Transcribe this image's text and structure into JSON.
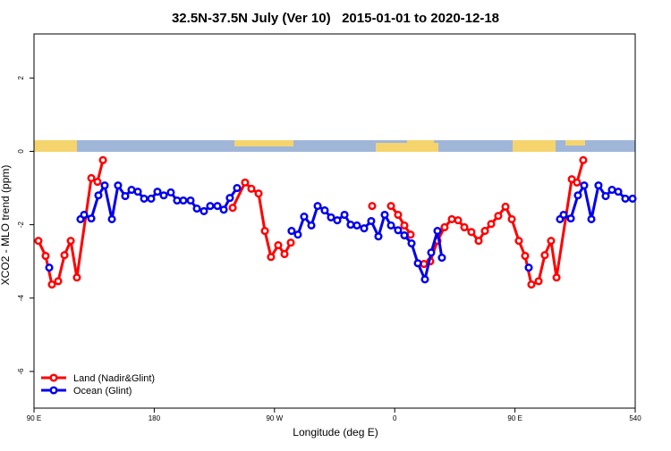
{
  "chart_data": {
    "type": "line",
    "title": "32.5N-37.5N July (Ver 10)   2015-01-01 to 2020-12-18",
    "xlabel": "Longitude (deg E)",
    "ylabel": "XCO2 - MLO trend (ppm)",
    "xlim": [
      90,
      540
    ],
    "xticks": [
      {
        "value": 90,
        "label": "90 E"
      },
      180,
      {
        "value": 270,
        "label": "90 W"
      },
      {
        "value": 360,
        "label": "0"
      },
      {
        "value": 450,
        "label": "90 E"
      },
      540
    ],
    "ylim": [
      -7,
      3.2
    ],
    "yticks": [
      2,
      0,
      -2,
      -4,
      -6
    ],
    "legend": "bottom-left",
    "series": [
      {
        "name": "Land (Nadir&Glint)",
        "color": "#ff0000",
        "x": [
          93.3,
          98.7,
          103.4,
          108.1,
          112.8,
          117.5,
          122.1,
          132.9,
          137.5,
          141.6,
          null,
          238.7,
          248.0,
          252.7,
          258.1,
          262.8,
          267.4,
          272.8,
          277.5,
          282.2,
          null,
          343.1,
          null,
          357.2,
          362.5,
          367.2,
          371.9,
          null,
          381.9,
          386.6,
          392.0,
          397.3,
          402.7,
          407.4,
          412.1,
          417.4,
          422.8,
          427.5,
          432.2,
          437.5,
          442.9,
          447.6,
          452.9,
          457.6,
          462.3,
          467.7,
          472.3,
          477.0,
          481.1,
          492.5,
          496.4,
          501.1
        ],
        "values": [
          -2.44,
          -2.85,
          -3.63,
          -3.54,
          -2.83,
          -2.44,
          -3.44,
          -0.73,
          -0.83,
          -0.24,
          null,
          -1.54,
          -0.85,
          -1.02,
          -1.15,
          -2.17,
          -2.88,
          -2.56,
          -2.8,
          -2.49,
          null,
          -1.49,
          null,
          -1.49,
          -1.73,
          -2.02,
          -2.27,
          null,
          -3.07,
          -3.0,
          -2.44,
          -2.07,
          -1.85,
          -1.88,
          -2.07,
          -2.2,
          -2.44,
          -2.17,
          -1.98,
          -1.76,
          -1.51,
          -1.85,
          -2.44,
          -2.85,
          -3.63,
          -3.54,
          -2.83,
          -2.44,
          -3.44,
          -0.76,
          -0.85,
          -0.24
        ]
      },
      {
        "name": "Ocean (Glint)",
        "color": "#0000ee",
        "x": [
          101.4,
          null,
          124.8,
          127.5,
          132.9,
          138.2,
          142.9,
          148.3,
          152.9,
          158.3,
          163.0,
          167.7,
          172.4,
          177.7,
          182.4,
          187.1,
          192.4,
          197.1,
          201.8,
          207.2,
          211.9,
          217.2,
          221.9,
          227.3,
          232.0,
          236.6,
          242.0,
          null,
          282.8,
          287.5,
          292.2,
          297.6,
          302.3,
          307.6,
          312.3,
          317.0,
          322.4,
          327.0,
          331.7,
          337.1,
          342.4,
          347.8,
          352.5,
          357.2,
          362.5,
          367.2,
          372.6,
          377.3,
          382.6,
          387.3,
          392.0,
          395.3,
          null,
          460.3,
          null,
          483.7,
          486.4,
          491.8,
          497.1,
          501.8,
          507.2,
          512.5,
          517.9,
          522.6,
          527.3,
          532.6,
          538.0
        ],
        "values": [
          -3.17,
          null,
          -1.85,
          -1.73,
          -1.83,
          -1.2,
          -0.93,
          -1.85,
          -0.93,
          -1.22,
          -1.05,
          -1.1,
          -1.29,
          -1.29,
          -1.1,
          -1.2,
          -1.12,
          -1.34,
          -1.34,
          -1.34,
          -1.56,
          -1.63,
          -1.49,
          -1.49,
          -1.59,
          -1.27,
          -1.0,
          null,
          -2.17,
          -2.27,
          -1.78,
          -2.02,
          -1.49,
          -1.61,
          -1.8,
          -1.88,
          -1.73,
          -2.0,
          -2.02,
          -2.1,
          -1.9,
          -2.32,
          -1.73,
          -2.02,
          -2.15,
          -2.29,
          -2.51,
          -3.05,
          -3.49,
          -2.76,
          -2.17,
          -2.9,
          null,
          -3.17,
          null,
          -1.85,
          -1.73,
          -1.83,
          -1.2,
          -0.93,
          -1.85,
          -0.93,
          -1.22,
          -1.05,
          -1.1,
          -1.29,
          -1.29
        ]
      }
    ]
  }
}
